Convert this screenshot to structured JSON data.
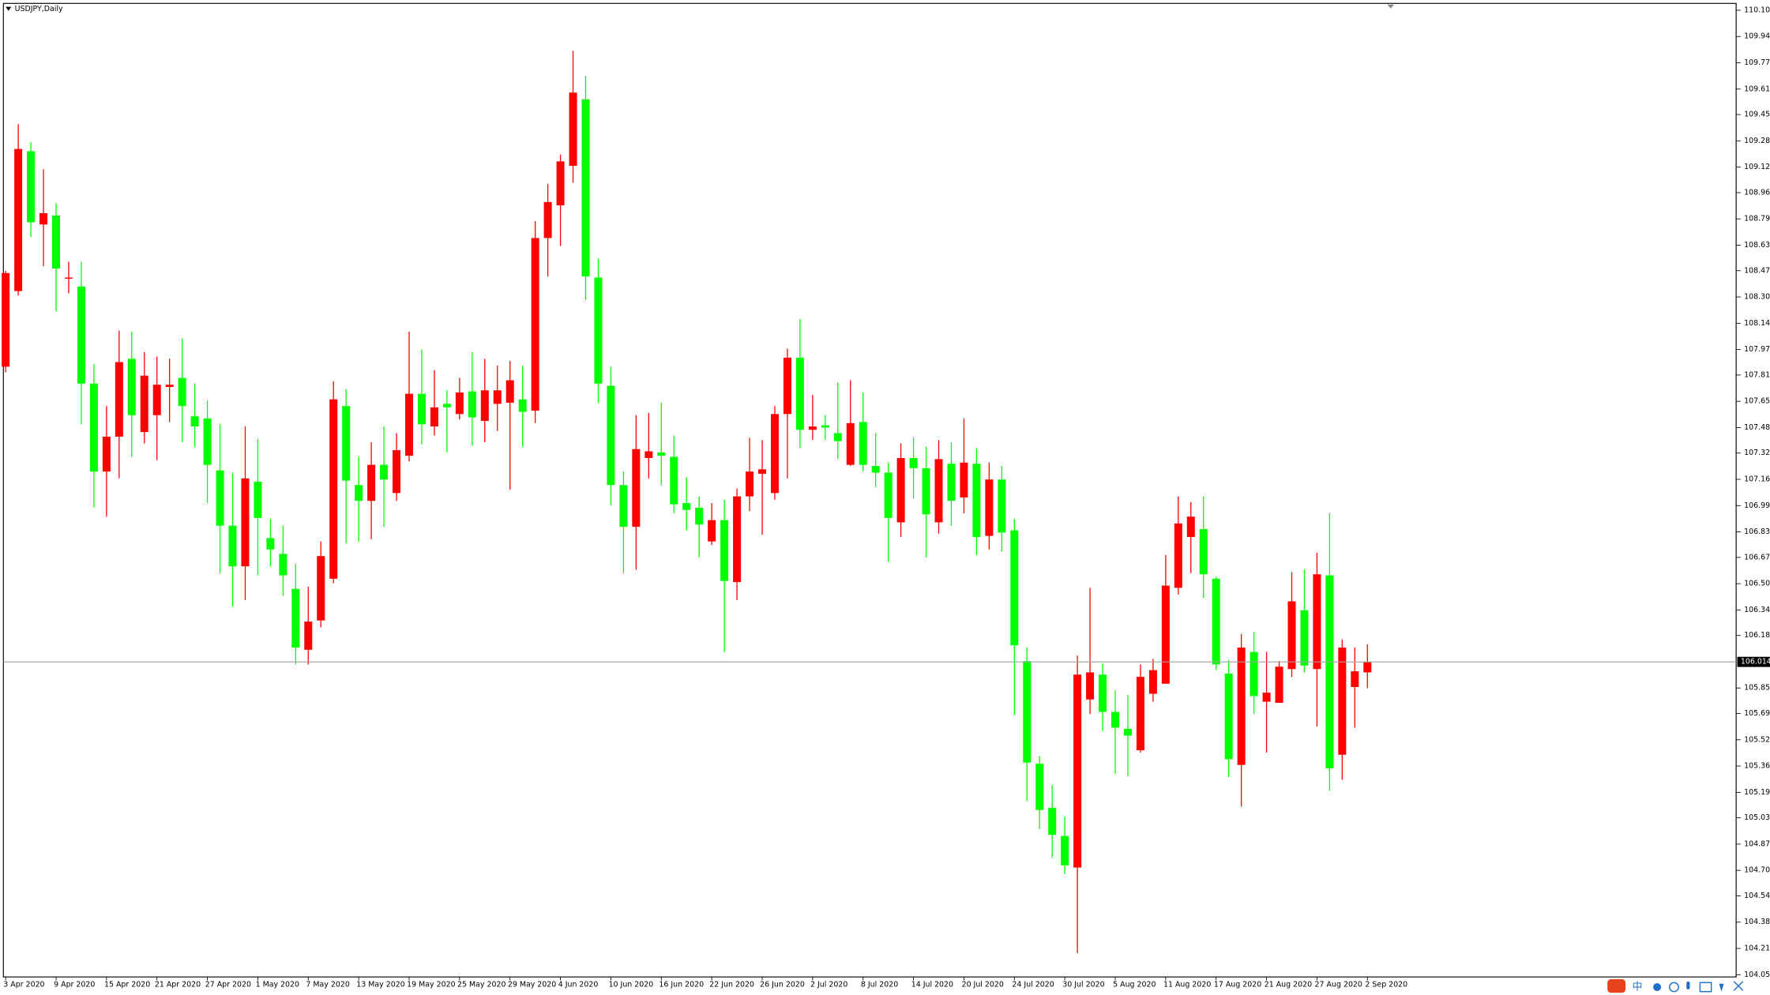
{
  "chart_data": {
    "type": "candlestick",
    "title": "USDJPY,Daily",
    "categories": [
      "3 Apr 2020",
      null,
      null,
      null,
      "9 Apr 2020",
      null,
      null,
      null,
      "15 Apr 2020",
      null,
      null,
      null,
      "21 Apr 2020",
      null,
      null,
      null,
      "27 Apr 2020",
      null,
      null,
      null,
      "1 May 2020",
      null,
      null,
      null,
      "7 May 2020",
      null,
      null,
      null,
      "13 May 2020",
      null,
      null,
      null,
      "19 May 2020",
      null,
      null,
      null,
      "25 May 2020",
      null,
      null,
      null,
      "29 May 2020",
      null,
      null,
      null,
      "4 Jun 2020",
      null,
      null,
      null,
      "10 Jun 2020",
      null,
      null,
      null,
      "16 Jun 2020",
      null,
      null,
      null,
      "22 Jun 2020",
      null,
      null,
      null,
      "26 Jun 2020",
      null,
      null,
      null,
      "2 Jul 2020",
      null,
      null,
      null,
      "8 Jul 2020",
      null,
      null,
      null,
      "14 Jul 2020",
      null,
      null,
      null,
      "20 Jul 2020",
      null,
      null,
      null,
      "24 Jul 2020",
      null,
      null,
      null,
      "30 Jul 2020",
      null,
      null,
      null,
      "5 Aug 2020",
      null,
      null,
      null,
      "11 Aug 2020",
      null,
      null,
      null,
      "17 Aug 2020",
      null,
      null,
      null,
      "21 Aug 2020",
      null,
      null,
      null,
      "27 Aug 2020",
      null,
      null,
      null,
      "2 Sep 2020"
    ],
    "open": [
      107.867,
      108.342,
      109.22,
      108.76,
      108.816,
      108.42,
      108.37,
      107.761,
      107.209,
      107.428,
      107.917,
      107.457,
      107.563,
      107.74,
      107.797,
      107.556,
      107.542,
      107.216,
      106.869,
      106.614,
      107.145,
      106.791,
      106.692,
      106.472,
      106.09,
      106.274,
      106.536,
      107.62,
      107.124,
      107.025,
      107.251,
      107.074,
      107.308,
      107.697,
      107.492,
      107.634,
      107.57,
      107.712,
      107.527,
      107.634,
      107.641,
      107.662,
      107.591,
      108.675,
      108.88,
      109.128,
      109.546,
      108.427,
      107.747,
      107.124,
      106.862,
      107.294,
      107.329,
      107.301,
      107.011,
      106.982,
      106.77,
      106.904,
      106.515,
      107.053,
      107.195,
      107.074,
      107.57,
      107.924,
      107.471,
      107.499,
      107.45,
      107.251,
      107.52,
      107.244,
      107.202,
      106.89,
      107.294,
      107.23,
      106.89,
      107.258,
      107.046,
      107.258,
      106.805,
      107.159,
      106.84,
      106.019,
      105.375,
      105.098,
      104.921,
      104.723,
      105.778,
      105.934,
      105.7,
      105.594,
      105.459,
      105.814,
      105.877,
      106.479,
      106.798,
      106.848,
      106.536,
      105.941,
      105.367,
      106.076,
      105.764,
      105.757,
      105.969,
      106.338,
      105.969,
      106.557,
      105.431,
      105.856,
      105.948
    ],
    "high": [
      108.469,
      109.39,
      109.277,
      109.107,
      108.894,
      108.526,
      108.526,
      107.882,
      107.62,
      108.094,
      108.087,
      107.959,
      107.931,
      107.917,
      108.045,
      107.761,
      107.655,
      107.506,
      107.202,
      107.492,
      107.414,
      106.911,
      106.869,
      106.628,
      106.486,
      106.77,
      107.775,
      107.726,
      107.301,
      107.393,
      107.492,
      107.45,
      108.087,
      107.974,
      107.846,
      107.719,
      107.797,
      107.959,
      107.917,
      107.874,
      107.903,
      107.874,
      108.781,
      109.015,
      109.199,
      109.85,
      109.694,
      108.547,
      107.867,
      107.209,
      107.563,
      107.577,
      107.641,
      107.435,
      107.173,
      107.053,
      107.011,
      107.032,
      107.102,
      107.421,
      107.407,
      107.62,
      107.981,
      108.165,
      107.69,
      107.563,
      107.768,
      107.782,
      107.705,
      107.45,
      107.265,
      107.386,
      107.421,
      107.364,
      107.407,
      107.393,
      107.542,
      107.357,
      107.265,
      107.244,
      106.911,
      106.104,
      105.424,
      105.24,
      105.042,
      106.054,
      106.479,
      106.005,
      105.835,
      105.807,
      105.998,
      106.033,
      106.685,
      107.053,
      107.018,
      107.053,
      106.55,
      106.026,
      106.189,
      106.203,
      106.076,
      106.019,
      106.578,
      106.593,
      106.699,
      106.947,
      106.154,
      106.104,
      106.125
    ],
    "low": [
      107.832,
      108.314,
      108.682,
      108.498,
      108.214,
      108.328,
      107.506,
      106.982,
      106.926,
      107.166,
      107.301,
      107.386,
      107.28,
      107.52,
      107.393,
      107.364,
      107.011,
      106.571,
      106.359,
      106.401,
      106.557,
      106.614,
      106.43,
      105.998,
      105.998,
      106.231,
      106.508,
      106.756,
      106.77,
      106.784,
      106.862,
      107.025,
      107.272,
      107.379,
      107.435,
      107.329,
      107.535,
      107.371,
      107.393,
      107.464,
      107.095,
      107.364,
      107.513,
      108.434,
      108.625,
      109.022,
      108.285,
      107.641,
      106.996,
      106.571,
      106.593,
      107.166,
      107.124,
      106.947,
      106.84,
      106.67,
      106.748,
      106.076,
      106.401,
      106.961,
      106.812,
      107.032,
      107.166,
      107.357,
      107.407,
      107.407,
      107.287,
      107.244,
      107.209,
      107.11,
      106.642,
      106.798,
      107.039,
      106.67,
      106.819,
      106.869,
      106.947,
      106.685,
      106.72,
      106.706,
      105.679,
      105.141,
      104.964,
      104.787,
      104.681,
      104.185,
      105.686,
      105.58,
      105.311,
      105.297,
      105.445,
      105.764,
      105.877,
      106.437,
      106.571,
      106.416,
      105.962,
      105.29,
      105.105,
      105.686,
      105.445,
      105.757,
      105.92,
      105.948,
      105.608,
      105.205,
      105.275,
      105.601,
      105.849
    ],
    "close": [
      108.455,
      109.234,
      108.774,
      108.831,
      108.484,
      108.427,
      107.761,
      107.209,
      107.428,
      107.896,
      107.563,
      107.811,
      107.754,
      107.754,
      107.62,
      107.492,
      107.251,
      106.869,
      106.614,
      107.166,
      106.918,
      106.72,
      106.557,
      106.104,
      106.267,
      106.678,
      107.662,
      107.152,
      107.025,
      107.251,
      107.159,
      107.343,
      107.697,
      107.506,
      107.612,
      107.612,
      107.705,
      107.549,
      107.719,
      107.719,
      107.782,
      107.584,
      108.675,
      108.901,
      109.156,
      109.588,
      108.434,
      107.761,
      107.124,
      106.862,
      107.35,
      107.336,
      107.308,
      107.003,
      106.968,
      106.876,
      106.904,
      106.522,
      107.053,
      107.209,
      107.223,
      107.57,
      107.924,
      107.471,
      107.492,
      107.485,
      107.4,
      107.513,
      107.251,
      107.202,
      106.918,
      107.294,
      107.23,
      106.94,
      107.287,
      107.025,
      107.265,
      106.798,
      107.159,
      106.826,
      106.118,
      105.382,
      105.084,
      104.928,
      104.737,
      105.934,
      105.948,
      105.7,
      105.601,
      105.551,
      105.92,
      105.962,
      106.493,
      106.883,
      106.926,
      106.564,
      105.998,
      105.403,
      106.104,
      105.799,
      105.821,
      105.984,
      106.394,
      105.991,
      106.564,
      105.346,
      106.104,
      105.955,
      106.014
    ],
    "up_color": "#ff0000",
    "down_color": "#00ff00",
    "last_price": 106.014,
    "ylim": [
      104.036,
      110.148
    ],
    "yticks": [
      110.105,
      {
        "value": 109.94,
        "label": "109.940"
      },
      109.775,
      {
        "value": 109.61,
        "label": "109.610"
      },
      {
        "value": 109.45,
        "label": "109.450"
      },
      109.285,
      {
        "value": 109.12,
        "label": "109.120"
      },
      {
        "value": 108.96,
        "label": "108.960"
      },
      108.795,
      {
        "value": 108.63,
        "label": "108.630"
      },
      {
        "value": 108.47,
        "label": "108.470"
      },
      108.305,
      {
        "value": 108.14,
        "label": "108.140"
      },
      107.975,
      107.815,
      {
        "value": 107.65,
        "label": "107.650"
      },
      107.485,
      107.325,
      {
        "value": 107.16,
        "label": "107.160"
      },
      106.995,
      {
        "value": 106.83,
        "label": "106.830"
      },
      {
        "value": 106.67,
        "label": "106.670"
      },
      106.505,
      {
        "value": 106.34,
        "label": "106.340"
      },
      {
        "value": 106.18,
        "label": "106.180"
      },
      {
        "value": 105.85,
        "label": "105.850"
      },
      {
        "value": 105.69,
        "label": "105.690"
      },
      105.525,
      {
        "value": 105.36,
        "label": "105.360"
      },
      105.195,
      105.035,
      {
        "value": 104.87,
        "label": "104.870"
      },
      104.705,
      104.545,
      {
        "value": 104.38,
        "label": "104.380"
      },
      104.215,
      {
        "value": 104.05,
        "label": "104.050"
      }
    ],
    "grid": false
  },
  "ime_indicator": "中"
}
